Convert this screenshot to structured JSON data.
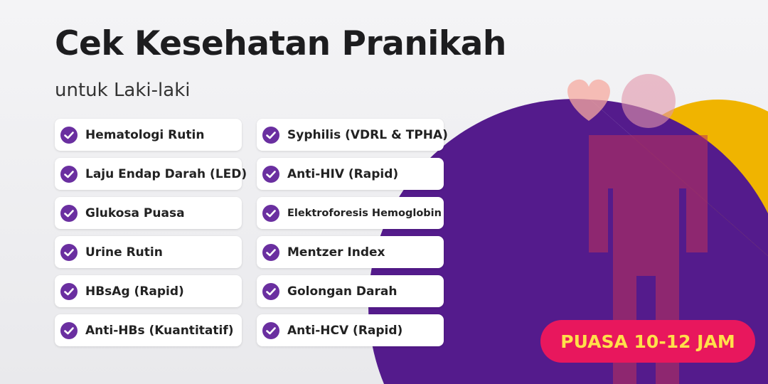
{
  "header": {
    "title": "Cek Kesehatan Pranikah",
    "subtitle": "untuk Laki-laki"
  },
  "columns": [
    [
      "Hematologi Rutin",
      "Laju Endap Darah (LED)",
      "Glukosa Puasa",
      "Urine Rutin",
      "HBsAg (Rapid)",
      "Anti-HBs (Kuantitatif)"
    ],
    [
      "Syphilis (VDRL & TPHA)",
      "Anti-HIV (Rapid)",
      "Elektroforesis Hemoglobin",
      "Mentzer Index",
      "Golongan Darah",
      "Anti-HCV (Rapid)"
    ]
  ],
  "badge": "PUASA 10-12 JAM"
}
